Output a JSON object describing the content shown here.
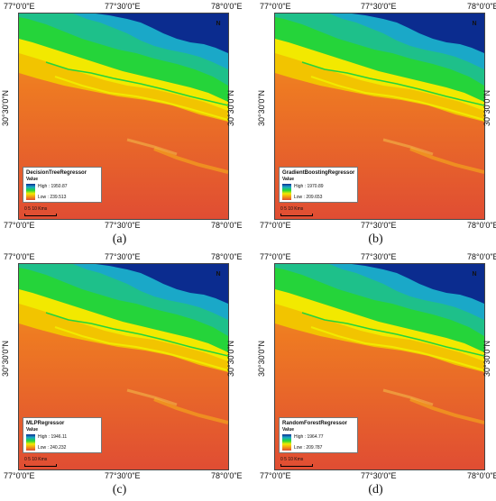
{
  "panels": [
    {
      "caption": "(a)",
      "lon_ticks": [
        "77°0'0\"E",
        "77°30'0\"E",
        "78°0'0\"E"
      ],
      "lat_tick": "30°30'0\"N",
      "legend": {
        "title": "DecisionTreeRegressor",
        "value_label": "Value",
        "high": "High : 1950.87",
        "low": "Low : 239.513"
      },
      "scale": "0    5    10 Kms",
      "north": "N"
    },
    {
      "caption": "(b)",
      "lon_ticks": [
        "77°0'0\"E",
        "77°30'0\"E",
        "78°0'0\"E"
      ],
      "lat_tick": "30°30'0\"N",
      "legend": {
        "title": "GradientBoostingRegressor",
        "value_label": "Value",
        "high": "High : 1970.89",
        "low": "Low : 209.653"
      },
      "scale": "0    5    10 Kms",
      "north": "N"
    },
    {
      "caption": "(c)",
      "lon_ticks": [
        "77°0'0\"E",
        "77°30'0\"E",
        "78°0'0\"E"
      ],
      "lat_tick": "30°30'0\"N",
      "legend": {
        "title": "MLPRegressor",
        "value_label": "Value",
        "high": "High : 1946.11",
        "low": "Low : 240.232"
      },
      "scale": "0    5    10 Kms",
      "north": "N"
    },
    {
      "caption": "(d)",
      "lon_ticks": [
        "77°0'0\"E",
        "77°30'0\"E",
        "78°0'0\"E"
      ],
      "lat_tick": "30°30'0\"N",
      "legend": {
        "title": "RandomForestRegressor",
        "value_label": "Value",
        "high": "High : 1964.77",
        "low": "Low : 209.787"
      },
      "scale": "0    5    10 Kms",
      "north": "N"
    }
  ],
  "colors": {
    "high": "#0b2c8f",
    "upper_mid": "#1aa8c8",
    "mid": "#25d43a",
    "lower_mid": "#f2e900",
    "orange": "#f29a12",
    "low": "#e04d33"
  }
}
